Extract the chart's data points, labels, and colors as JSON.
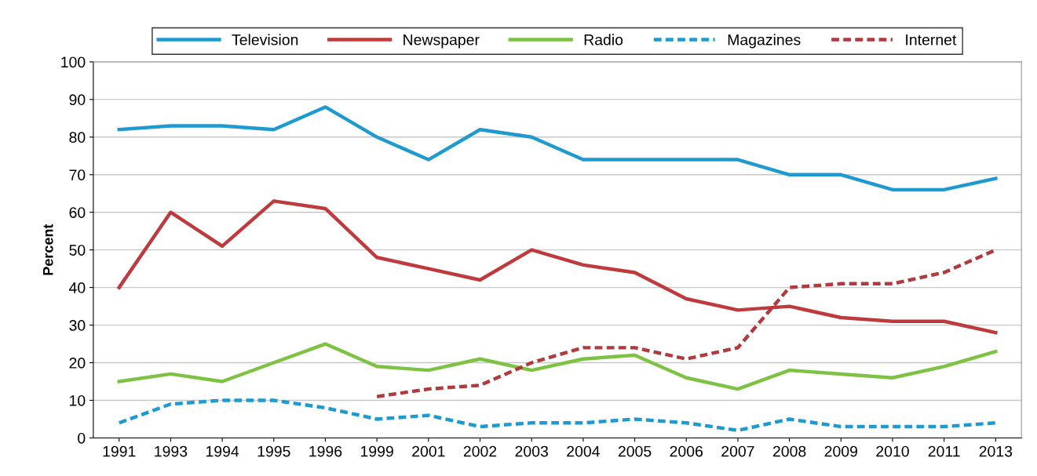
{
  "chart_data": {
    "type": "line",
    "ylabel": "Percent",
    "categories": [
      "1991",
      "1993",
      "1994",
      "1995",
      "1996",
      "1999",
      "2001",
      "2002",
      "2003",
      "2004",
      "2005",
      "2006",
      "2007",
      "2008",
      "2009",
      "2010",
      "2011",
      "2013"
    ],
    "series": [
      {
        "name": "Television",
        "color": "#1e9ad0",
        "line_style": "solid",
        "values": [
          82,
          83,
          83,
          82,
          88,
          80,
          74,
          82,
          80,
          74,
          74,
          74,
          74,
          70,
          70,
          66,
          66,
          69
        ]
      },
      {
        "name": "Newspaper",
        "color": "#be3a3c",
        "line_style": "solid",
        "values": [
          40,
          60,
          51,
          63,
          61,
          48,
          45,
          42,
          50,
          46,
          44,
          37,
          34,
          35,
          32,
          31,
          31,
          28
        ]
      },
      {
        "name": "Radio",
        "color": "#7dc242",
        "line_style": "solid",
        "values": [
          15,
          17,
          15,
          20,
          25,
          19,
          18,
          21,
          18,
          21,
          22,
          16,
          13,
          18,
          17,
          16,
          19,
          23
        ]
      },
      {
        "name": "Magazines",
        "color": "#1e9ad0",
        "line_style": "dashed",
        "values": [
          4,
          9,
          10,
          10,
          8,
          5,
          6,
          3,
          4,
          4,
          5,
          4,
          2,
          5,
          3,
          3,
          3,
          4
        ]
      },
      {
        "name": "Internet",
        "color": "#b03a3e",
        "line_style": "dashed",
        "values": [
          null,
          null,
          null,
          null,
          null,
          11,
          13,
          14,
          20,
          24,
          24,
          21,
          24,
          40,
          41,
          41,
          44,
          50
        ]
      }
    ],
    "ylim": [
      0,
      100
    ],
    "yticks": [
      0,
      10,
      20,
      30,
      40,
      50,
      60,
      70,
      80,
      90,
      100
    ],
    "grid": "y",
    "legend": "top",
    "marker": "none"
  }
}
